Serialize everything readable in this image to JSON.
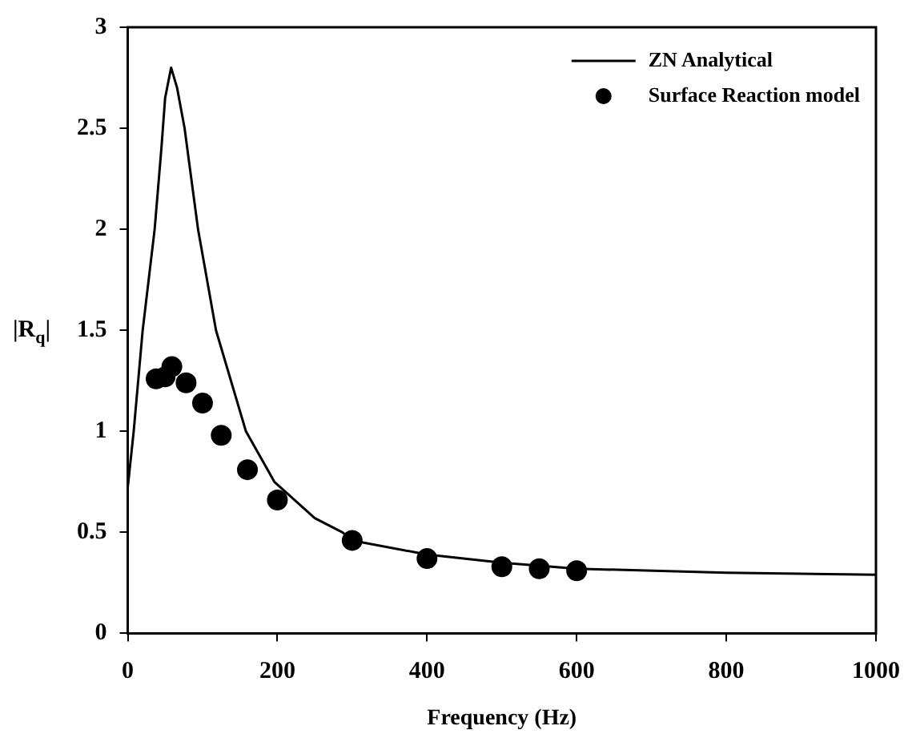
{
  "chart_data": {
    "type": "line",
    "xlabel": "Frequency (Hz)",
    "ylabel": "|R$_{q}$|",
    "xlim": [
      0,
      1000
    ],
    "xticks": [
      0,
      200,
      400,
      600,
      800,
      1000
    ],
    "ylim": [
      0,
      3
    ],
    "yticks": [
      0,
      0.5,
      1,
      1.5,
      2,
      2.5,
      3
    ],
    "grid": false,
    "legend": "top right",
    "series": [
      {
        "name": "ZN Analytical",
        "color": "#000000",
        "marker": "none",
        "line_style": "solid",
        "x": [
          0,
          8,
          20,
          36,
          45,
          50,
          58,
          66,
          76,
          94,
          118,
          158,
          196,
          250,
          287,
          300,
          400,
          500,
          600,
          800,
          1000
        ],
        "values": [
          0.72,
          1.0,
          1.5,
          2.0,
          2.4,
          2.65,
          2.8,
          2.7,
          2.5,
          2.0,
          1.5,
          1.0,
          0.75,
          0.57,
          0.5,
          0.46,
          0.39,
          0.35,
          0.32,
          0.3,
          0.29
        ]
      },
      {
        "name": "Surface Reaction model",
        "type": "scatter",
        "color": "#000000",
        "marker": "circle",
        "x": [
          38,
          50,
          59,
          78,
          100,
          125,
          160,
          200,
          300,
          400,
          500,
          550,
          600
        ],
        "values": [
          1.26,
          1.27,
          1.32,
          1.24,
          1.14,
          0.98,
          0.81,
          0.66,
          0.46,
          0.37,
          0.33,
          0.32,
          0.31
        ]
      }
    ]
  }
}
